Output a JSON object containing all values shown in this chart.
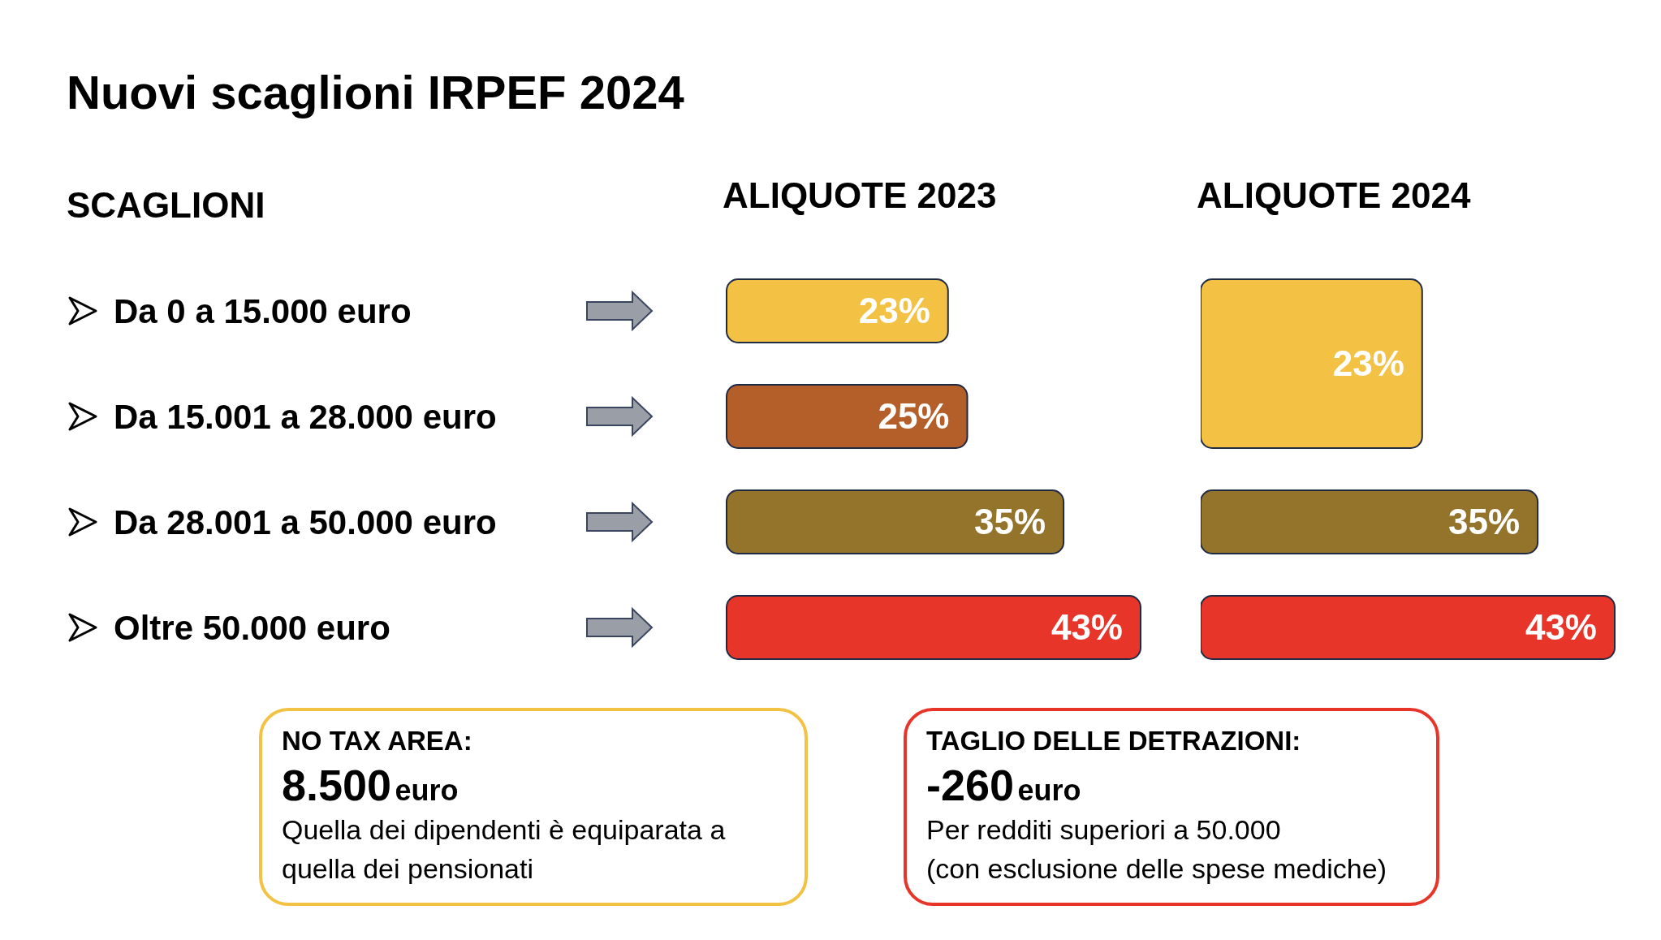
{
  "chart_data": [
    {
      "type": "bar",
      "orientation": "horizontal",
      "title": "Nuovi scaglioni IRPEF 2024",
      "subtitle": "ALIQUOTE 2023",
      "ylabel": "SCAGLIONI",
      "categories": [
        "Da 0 a 15.000 euro",
        "Da 15.001 a 28.000 euro",
        "Da 28.001 a 50.000 euro",
        "Oltre 50.000 euro"
      ],
      "values": [
        23,
        25,
        35,
        43
      ],
      "value_labels": [
        "23%",
        "25%",
        "35%",
        "43%"
      ],
      "colors": [
        "#f3c245",
        "#b45f2a",
        "#94742a",
        "#e8352a"
      ],
      "annotations": [
        "NO TAX AREA:",
        "8.500",
        "euro",
        "Quella dei dipendenti è equiparata a quella dei pensionati"
      ]
    },
    {
      "type": "bar",
      "orientation": "horizontal",
      "title": "ALIQUOTE 2024",
      "categories": [
        null,
        null,
        null,
        null
      ],
      "values": [
        23,
        null,
        35,
        43
      ],
      "value_labels": [
        "23%",
        null,
        "35%",
        "43%"
      ],
      "colors": [
        "#f3c245",
        "#b45f2a",
        "#94742a",
        "#e8352a"
      ],
      "annotations": [
        "TAGLIO DELLE DETRAZIONI:",
        "-260",
        "euro",
        "Per redditi superiori a 50.000",
        "(con esclusione delle spese mediche)"
      ]
    }
  ]
}
